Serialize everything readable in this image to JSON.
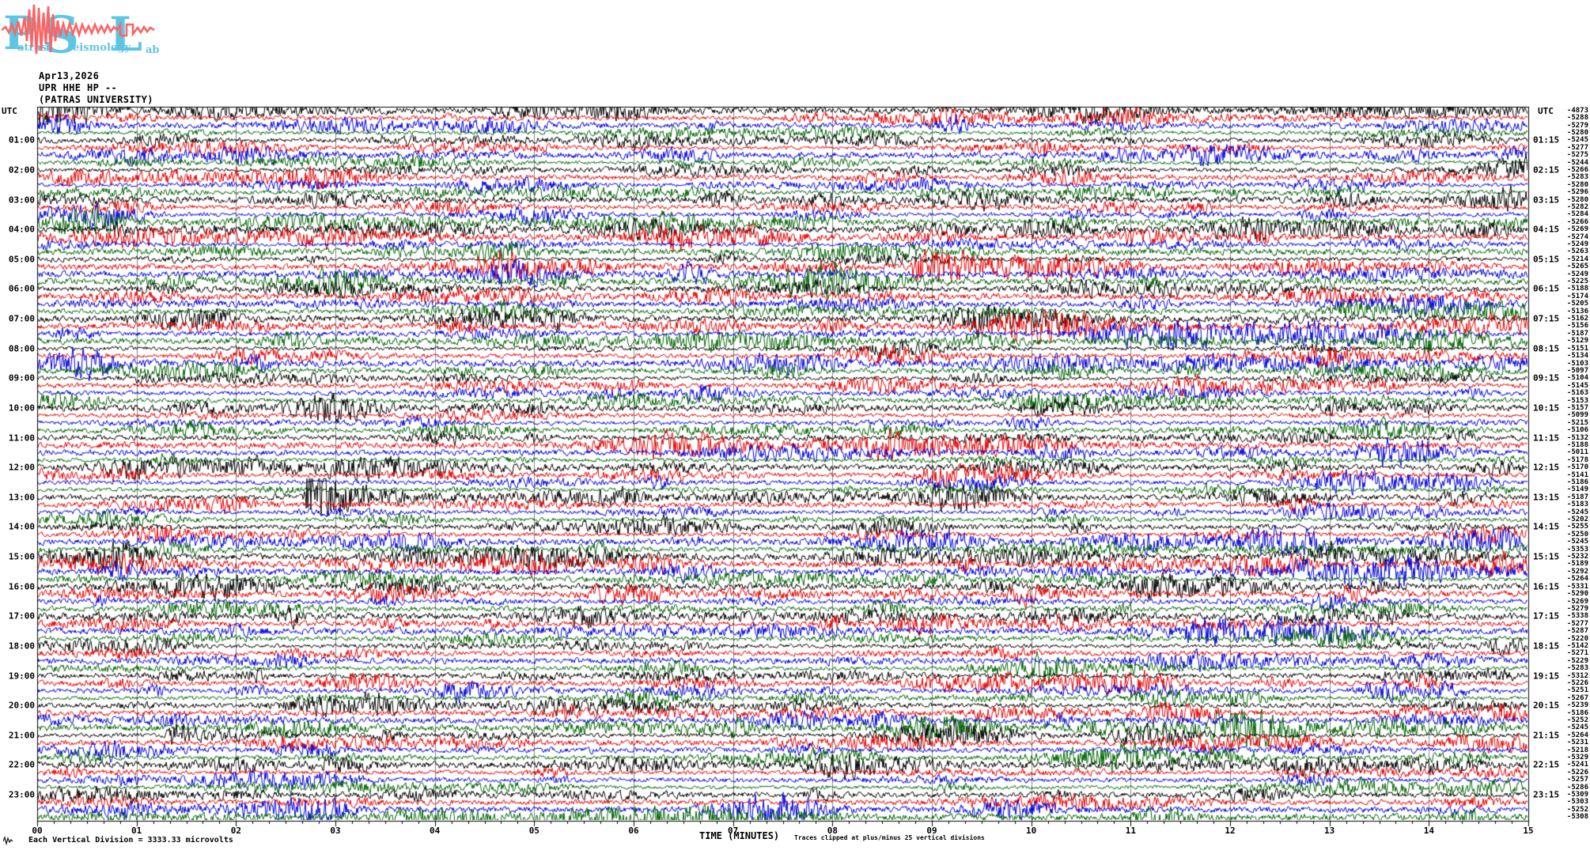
{
  "logo": {
    "letters": [
      "P",
      "S",
      "L"
    ],
    "words": [
      "atras",
      "eismology",
      "ab"
    ],
    "letter_color": "#5ec6e4",
    "wave_color": "#fb6464"
  },
  "header": {
    "date": "Apr13,2026",
    "station": "UPR HHE HP --",
    "institution": "(PATRAS UNIVERSITY)"
  },
  "axes": {
    "left_top_label": "UTC",
    "right_top_label": "UTC",
    "x_title": "TIME (MINUTES)",
    "minute_labels": [
      "00",
      "01",
      "02",
      "03",
      "04",
      "05",
      "06",
      "07",
      "08",
      "09",
      "10",
      "11",
      "12",
      "13",
      "14",
      "15"
    ],
    "left_hour_labels": [
      "01:00",
      "02:00",
      "03:00",
      "04:00",
      "05:00",
      "06:00",
      "07:00",
      "08:00",
      "09:00",
      "10:00",
      "11:00",
      "12:00",
      "13:00",
      "14:00",
      "15:00",
      "16:00",
      "17:00",
      "18:00",
      "19:00",
      "20:00",
      "21:00",
      "22:00",
      "23:00"
    ],
    "right_hour_labels": [
      "01:15",
      "02:15",
      "03:15",
      "04:15",
      "05:15",
      "06:15",
      "07:15",
      "08:15",
      "09:15",
      "10:15",
      "11:15",
      "12:15",
      "13:15",
      "14:15",
      "15:15",
      "16:15",
      "17:15",
      "18:15",
      "19:15",
      "20:15",
      "21:15",
      "22:15",
      "23:15"
    ]
  },
  "footer": {
    "left_note": "Each Vertical Division = 3333.33 microvolts",
    "clip_note": "Traces clipped at plus/minus 25 vertical divisions"
  },
  "chart_data": {
    "type": "line",
    "subtype": "helicorder_seismogram",
    "title": "UPR HHE HP -- (PATRAS UNIVERSITY) Apr13,2026",
    "xlabel": "TIME (MINUTES)",
    "x_range_minutes": [
      0,
      15
    ],
    "rows": 96,
    "hours": 24,
    "lines_per_hour": 4,
    "minutes_per_line": 15,
    "row_color_cycle": [
      "#000000",
      "#e60000",
      "#0000dd",
      "#006600"
    ],
    "grid": {
      "vertical_minute_gridlines": true,
      "gridline_color": "#858585",
      "legend": "none"
    },
    "vertical_division_microvolts": 3333.33,
    "clip_divisions": 25,
    "right_trace_mean_offsets_microvolts": [
      -4873,
      -5288,
      -5279,
      -5280,
      -5245,
      -5277,
      -5275,
      -5244,
      -5266,
      -5283,
      -5280,
      -5296,
      -5280,
      -5282,
      -5284,
      -5266,
      -5269,
      -5274,
      -5249,
      -5263,
      -5214,
      -5265,
      -5249,
      -5225,
      -5188,
      -5174,
      -5205,
      -5136,
      -5162,
      -5156,
      -5187,
      -5129,
      -5151,
      -5134,
      -5103,
      -5097,
      -5104,
      -5145,
      -5163,
      -5153,
      -5157,
      -5099,
      -5215,
      -5106,
      -5132,
      -5188,
      -5011,
      -5178,
      -5170,
      -5141,
      -5186,
      -5149,
      -5187,
      -5183,
      -5245,
      -5202,
      -5255,
      -5250,
      -5245,
      -5353,
      -5232,
      -5189,
      -5292,
      -5264,
      -5331,
      -5290,
      -5269,
      -5279,
      -5338,
      -5277,
      -5287,
      -5220,
      -5142,
      -5271,
      -5229,
      -5283,
      -5312,
      -5226,
      -5251,
      -5267,
      -5239,
      -5186,
      -5252,
      -5245,
      -5264,
      -5231,
      -5218,
      -5329,
      -5241,
      -5226,
      -5257,
      -5286,
      -5309,
      -5303,
      -5252,
      -5308
    ],
    "main_event": {
      "row_index": 52,
      "row_start_utc": "13:00",
      "approx_minute": 2.7,
      "trace_color": "#000000",
      "description": "high-amplitude clipped burst with decaying coda"
    },
    "secondary_bursts": [
      {
        "row_index": 21,
        "approx_minute": 8.8,
        "relative_gain": 4.0
      },
      {
        "row_index": 84,
        "approx_minute": 1.3,
        "relative_gain": 3.2
      }
    ]
  }
}
